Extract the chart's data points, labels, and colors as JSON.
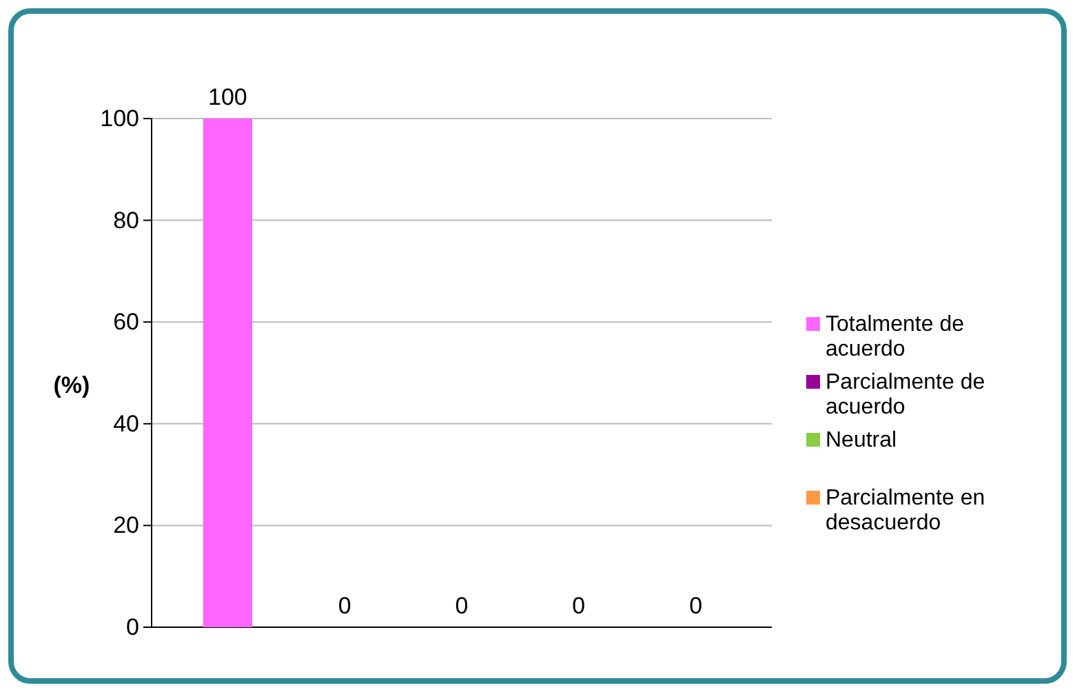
{
  "chart_data": {
    "type": "bar",
    "ylabel": "(%)",
    "categories": [
      null,
      null,
      null,
      null,
      null
    ],
    "series": [
      {
        "name": "Totalmente de acuerdo",
        "color": "#ff66ff",
        "values": [
          100,
          null,
          null,
          null,
          null
        ]
      },
      {
        "name": "Parcialmente de acuerdo",
        "color": "#990099",
        "values": [
          null,
          0,
          null,
          null,
          null
        ]
      },
      {
        "name": "Neutral",
        "color": "#88cc44",
        "values": [
          null,
          null,
          0,
          null,
          null
        ]
      },
      {
        "name": "Parcialmente en desacuerdo",
        "color": "#ff9944",
        "values": [
          null,
          null,
          null,
          0,
          null
        ]
      },
      {
        "color": "#4477cc",
        "values": [
          null,
          null,
          null,
          null,
          0
        ]
      }
    ],
    "ylim": [
      0,
      100
    ],
    "yticks": [
      0,
      20,
      40,
      60,
      80,
      100
    ],
    "grid": "y",
    "legend": "right",
    "data_labels": true
  }
}
